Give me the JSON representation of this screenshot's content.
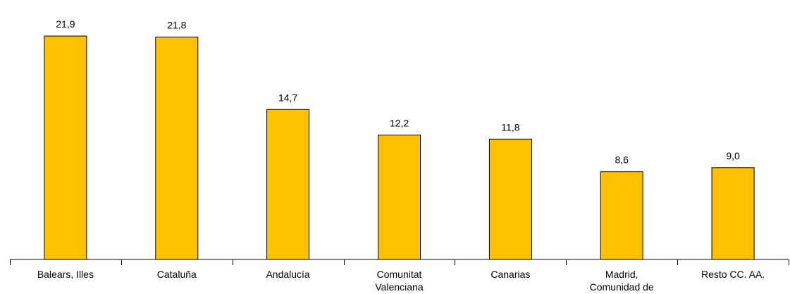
{
  "chart_data": {
    "type": "bar",
    "title": "",
    "xlabel": "",
    "ylabel": "",
    "categories": [
      [
        "Balears, Illes"
      ],
      [
        "Cataluña"
      ],
      [
        "Andalucía"
      ],
      [
        "Comunitat",
        "Valenciana"
      ],
      [
        "Canarias"
      ],
      [
        "Madrid,",
        "Comunidad de"
      ],
      [
        "Resto CC. AA."
      ]
    ],
    "values": [
      21.9,
      21.8,
      14.7,
      12.2,
      11.8,
      8.6,
      9.0
    ],
    "value_labels": [
      "21,9",
      "21,8",
      "14,7",
      "12,2",
      "11,8",
      "8,6",
      "9,0"
    ],
    "ylim": [
      0,
      23.5
    ],
    "grid": false,
    "colors": {
      "bar_fill": "#FFC000",
      "bar_stroke": "#000000",
      "text": "#000000",
      "axis": "#000000"
    }
  }
}
